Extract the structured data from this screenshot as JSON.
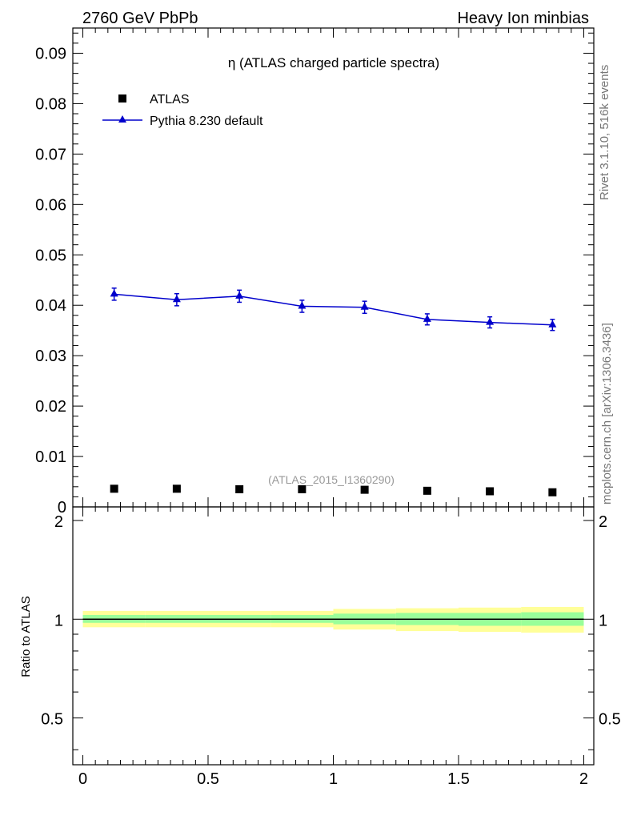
{
  "header": {
    "left": "2760 GeV PbPb",
    "right": "Heavy Ion minbias"
  },
  "side_labels": {
    "rivet": "Rivet 3.1.10,  516k events",
    "mcplots": "mcplots.cern.ch [arXiv:1306.3436]"
  },
  "chart_data": [
    {
      "type": "scatter",
      "title": "η (ATLAS charged particle spectra)",
      "watermark": "(ATLAS_2015_I1360290)",
      "xlim": [
        -0.04,
        2.04
      ],
      "ylim": [
        0,
        0.095
      ],
      "yticks": [
        0.01,
        0.02,
        0.03,
        0.04,
        0.05,
        0.06,
        0.07,
        0.08,
        0.09
      ],
      "ytick_labels": [
        "0.01",
        "0.02",
        "0.03",
        "0.04",
        "0.05",
        "0.06",
        "0.07",
        "0.08",
        "0.09"
      ],
      "ytick_zero_label": "0",
      "legend": {
        "placement": "top-left",
        "entries": [
          {
            "label": "ATLAS",
            "marker": "square",
            "color": "#000000"
          },
          {
            "label": "Pythia 8.230 default",
            "marker": "triangle",
            "color": "#0000cc"
          }
        ]
      },
      "series": [
        {
          "name": "ATLAS",
          "x": [
            0.125,
            0.375,
            0.625,
            0.875,
            1.125,
            1.375,
            1.625,
            1.875
          ],
          "y": [
            0.0036,
            0.0036,
            0.0035,
            0.0035,
            0.0034,
            0.0032,
            0.0031,
            0.0029
          ],
          "color": "#000000"
        },
        {
          "name": "Pythia 8.230 default",
          "x": [
            0.125,
            0.375,
            0.625,
            0.875,
            1.125,
            1.375,
            1.625,
            1.875
          ],
          "y": [
            0.0422,
            0.0411,
            0.0418,
            0.0398,
            0.0396,
            0.0372,
            0.0366,
            0.0361
          ],
          "yerr": [
            0.0012,
            0.0012,
            0.0012,
            0.0012,
            0.0012,
            0.0011,
            0.0011,
            0.0011
          ],
          "color": "#0000cc"
        }
      ]
    },
    {
      "type": "area",
      "ylabel": "Ratio to ATLAS",
      "xlim": [
        -0.04,
        2.04
      ],
      "ylim": [
        0.36,
        2.2
      ],
      "xticks": [
        0,
        0.5,
        1,
        1.5,
        2
      ],
      "xtick_labels": [
        "0",
        "0.5",
        "1",
        "1.5",
        "2"
      ],
      "yticks": [
        0.5,
        1,
        2
      ],
      "ytick_labels": [
        "0.5",
        "1",
        "2"
      ],
      "bins": [
        0,
        0.25,
        0.5,
        0.75,
        1,
        1.25,
        1.5,
        1.75,
        2
      ],
      "yellow_band": {
        "low": [
          0.945,
          0.945,
          0.945,
          0.945,
          0.93,
          0.92,
          0.915,
          0.91
        ],
        "high": [
          1.06,
          1.06,
          1.06,
          1.06,
          1.075,
          1.08,
          1.085,
          1.09
        ]
      },
      "green_band": {
        "low": [
          0.975,
          0.975,
          0.975,
          0.975,
          0.965,
          0.96,
          0.955,
          0.955
        ],
        "high": [
          1.03,
          1.03,
          1.03,
          1.03,
          1.04,
          1.045,
          1.045,
          1.05
        ]
      },
      "colors": {
        "yellow": "#ffff99",
        "green": "#99ff99"
      }
    }
  ]
}
